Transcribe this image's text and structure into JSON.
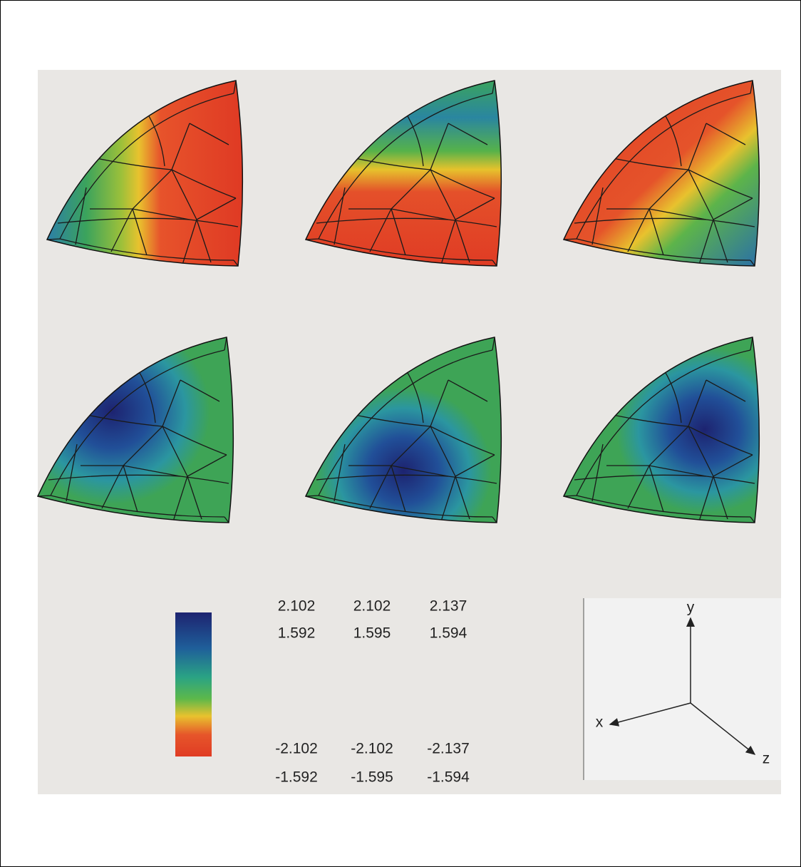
{
  "figure": {
    "labels": {
      "top": [
        [
          "2.102",
          "2.102",
          "2.137"
        ],
        [
          "1.592",
          "1.595",
          "1.594"
        ]
      ],
      "bottom": [
        [
          "-2.102",
          "-2.102",
          "-2.137"
        ],
        [
          "-1.592",
          "-1.595",
          "-1.594"
        ]
      ]
    },
    "axes": {
      "x": "x",
      "y": "y",
      "z": "z"
    }
  }
}
